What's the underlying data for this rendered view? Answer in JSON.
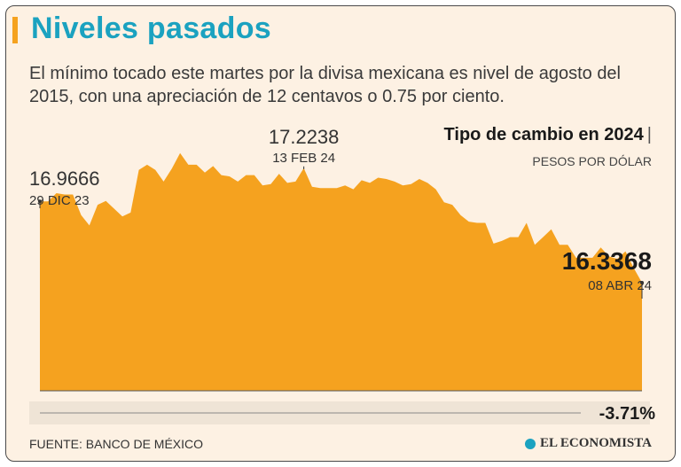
{
  "header": {
    "title": "Niveles pasados",
    "subtitle": "El mínimo tocado este martes por la divisa mexicana es nivel de agosto del 2015, con una apreciación de 12 centavos o 0.75 por ciento."
  },
  "chart_data": {
    "type": "area",
    "title": "Tipo de cambio en 2024",
    "title_suffix": "|",
    "ylabel": "PESOS POR DÓLAR",
    "ylim": [
      15.5,
      17.38
    ],
    "color": "#f5a21f",
    "values": [
      16.9666,
      16.9666,
      17.03,
      17.02,
      17.02,
      16.86,
      16.78,
      16.94,
      16.97,
      16.91,
      16.85,
      16.88,
      17.21,
      17.25,
      17.21,
      17.12,
      17.22,
      17.34,
      17.25,
      17.25,
      17.19,
      17.24,
      17.17,
      17.16,
      17.12,
      17.17,
      17.17,
      17.09,
      17.1,
      17.18,
      17.11,
      17.12,
      17.2238,
      17.08,
      17.07,
      17.07,
      17.07,
      17.09,
      17.06,
      17.13,
      17.11,
      17.15,
      17.14,
      17.12,
      17.09,
      17.1,
      17.14,
      17.11,
      17.06,
      16.96,
      16.94,
      16.86,
      16.81,
      16.8,
      16.8,
      16.64,
      16.66,
      16.69,
      16.69,
      16.8,
      16.63,
      16.69,
      16.75,
      16.63,
      16.63,
      16.53,
      16.53,
      16.53,
      16.61,
      16.54,
      16.52,
      16.58,
      16.45,
      16.3368
    ],
    "annotations": [
      {
        "value": "16.9666",
        "date": "29 DIC 23"
      },
      {
        "value": "17.2238",
        "date": "13 FEB 24"
      },
      {
        "value": "16.3368",
        "date": "08 ABR 24"
      }
    ],
    "change": "-3.71%"
  },
  "footer": {
    "source": "FUENTE: BANCO DE MÉXICO",
    "brand": "EL ECONOMISTA"
  },
  "colors": {
    "accent": "#f5a21f",
    "title": "#1ba2c0",
    "background": "#fdf1e3"
  }
}
